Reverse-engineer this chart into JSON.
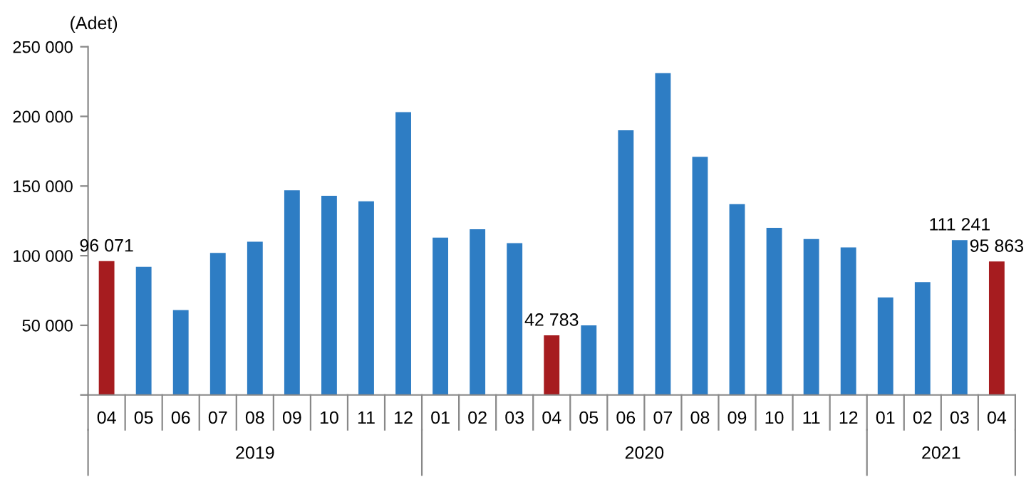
{
  "chart_data": {
    "type": "bar",
    "ylabel": "(Adet)",
    "categories": [
      "04",
      "05",
      "06",
      "07",
      "08",
      "09",
      "10",
      "11",
      "12",
      "01",
      "02",
      "03",
      "04",
      "05",
      "06",
      "07",
      "08",
      "09",
      "10",
      "11",
      "12",
      "01",
      "02",
      "03",
      "04"
    ],
    "values": [
      96071,
      92000,
      61000,
      102000,
      110000,
      147000,
      143000,
      139000,
      203000,
      113000,
      119000,
      109000,
      42783,
      50000,
      190000,
      231000,
      171000,
      137000,
      120000,
      112000,
      106000,
      70000,
      81000,
      111241,
      95863
    ],
    "colors": [
      "#a61c1f",
      "#2e7dc4",
      "#2e7dc4",
      "#2e7dc4",
      "#2e7dc4",
      "#2e7dc4",
      "#2e7dc4",
      "#2e7dc4",
      "#2e7dc4",
      "#2e7dc4",
      "#2e7dc4",
      "#2e7dc4",
      "#a61c1f",
      "#2e7dc4",
      "#2e7dc4",
      "#2e7dc4",
      "#2e7dc4",
      "#2e7dc4",
      "#2e7dc4",
      "#2e7dc4",
      "#2e7dc4",
      "#2e7dc4",
      "#2e7dc4",
      "#2e7dc4",
      "#a61c1f"
    ],
    "value_labels": [
      "96 071",
      null,
      null,
      null,
      null,
      null,
      null,
      null,
      null,
      null,
      null,
      null,
      "42 783",
      null,
      null,
      null,
      null,
      null,
      null,
      null,
      null,
      null,
      null,
      "111 241",
      "95 863"
    ],
    "ylim": [
      0,
      250000
    ],
    "yticks": [
      {
        "value": 0,
        "label": null
      },
      {
        "value": 50000,
        "label": "50 000"
      },
      {
        "value": 100000,
        "label": "100 000"
      },
      {
        "value": 150000,
        "label": "150 000"
      },
      {
        "value": 200000,
        "label": "200 000"
      },
      {
        "value": 250000,
        "label": "250 000"
      }
    ],
    "annotations": [
      "2019",
      "2020",
      "2021"
    ],
    "grid": false,
    "legend": false
  }
}
